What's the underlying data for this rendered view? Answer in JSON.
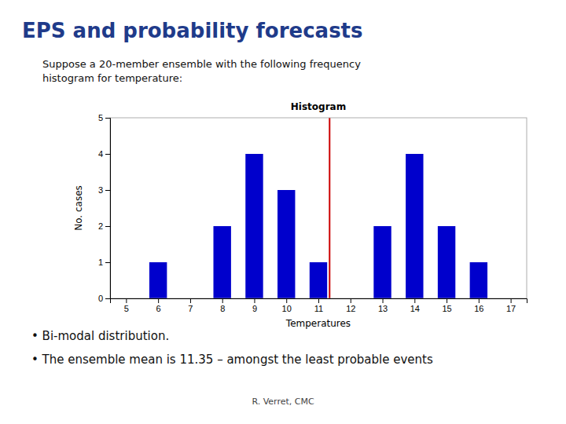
{
  "title": "EPS and probability forecasts",
  "subtitle": "Suppose a 20-member ensemble with the following frequency\nhistogram for temperature:",
  "bullets": [
    "• Bi-modal distribution.",
    "• The ensemble mean is 11.35 – amongst the least probable events"
  ],
  "footer": "R. Verret, CMC",
  "chart_data": {
    "type": "bar",
    "title": "Histogram",
    "xlabel": "Temperatures",
    "ylabel": "No. cases",
    "x": [
      5,
      6,
      7,
      8,
      9,
      10,
      11,
      12,
      13,
      14,
      15,
      16,
      17
    ],
    "values": [
      0,
      1,
      0,
      2,
      4,
      3,
      1,
      0,
      2,
      4,
      2,
      1,
      0
    ],
    "color": "#0000CC",
    "mean_x": 11.35,
    "mean_color": "#CC0000",
    "xlim": [
      4.5,
      17.5
    ],
    "xticks": [
      5,
      6,
      7,
      8,
      9,
      10,
      11,
      12,
      13,
      14,
      15,
      16,
      17
    ],
    "ylim": [
      0,
      5
    ],
    "yticks": [
      0,
      1,
      2,
      3,
      4,
      5
    ],
    "grid": false
  }
}
